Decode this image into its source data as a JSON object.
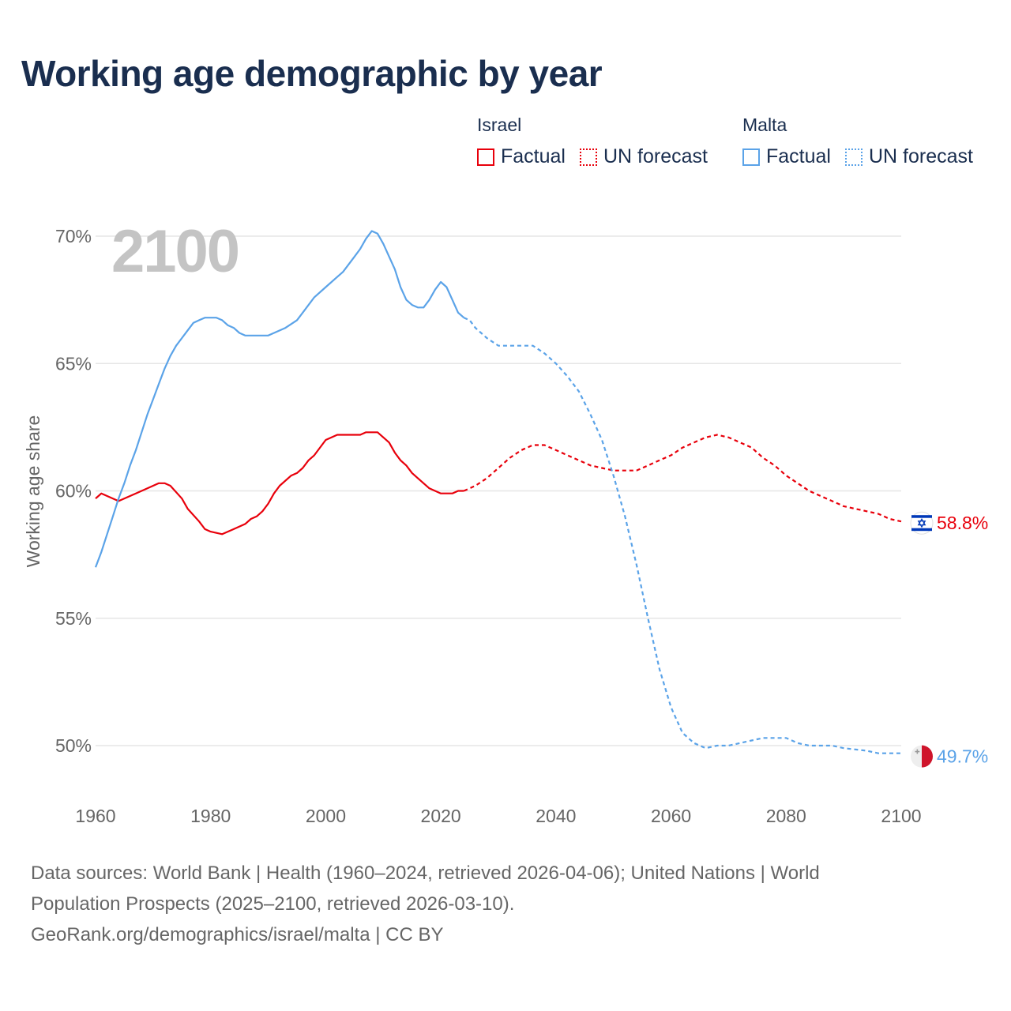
{
  "title": "Working age demographic by year",
  "legend": {
    "groups": [
      {
        "country": "Israel",
        "factual": "Factual",
        "forecast": "UN forecast",
        "color": "#e8000b"
      },
      {
        "country": "Malta",
        "factual": "Factual",
        "forecast": "UN forecast",
        "color": "#5ba3e8"
      }
    ]
  },
  "year_watermark": "2100",
  "footer": {
    "line1": "Data sources: World Bank | Health (1960–2024, retrieved 2026-04-06); United Nations | World",
    "line2": "Population Prospects (2025–2100, retrieved 2026-03-10).",
    "line3": "GeoRank.org/demographics/israel/malta | CC BY"
  },
  "colors": {
    "israel": "#e8000b",
    "malta": "#5ba3e8",
    "grid": "#e6e6e6",
    "axis_text": "#666666"
  },
  "chart_data": {
    "type": "line",
    "title": "Working age demographic by year",
    "ylabel": "Working age share",
    "xlabel": "",
    "xlim": [
      1960,
      2100
    ],
    "ylim": [
      48,
      71
    ],
    "x_ticks": [
      1960,
      1980,
      2000,
      2020,
      2040,
      2060,
      2080,
      2100
    ],
    "x_tick_labels": [
      "1960",
      "1980",
      "2000",
      "2020",
      "2040",
      "2060",
      "2080",
      "2100"
    ],
    "y_ticks": [
      50,
      55,
      60,
      65,
      70
    ],
    "y_tick_labels": [
      "50%",
      "55%",
      "60%",
      "65%",
      "70%"
    ],
    "series": [
      {
        "name": "Israel",
        "color": "#e8000b",
        "end_label": "58.8%",
        "flag": "israel-flag",
        "factual": [
          [
            1960,
            59.7
          ],
          [
            1961,
            59.9
          ],
          [
            1964,
            59.6
          ],
          [
            1967,
            59.9
          ],
          [
            1969,
            60.1
          ],
          [
            1971,
            60.3
          ],
          [
            1972,
            60.3
          ],
          [
            1973,
            60.2
          ],
          [
            1975,
            59.7
          ],
          [
            1976,
            59.3
          ],
          [
            1978,
            58.8
          ],
          [
            1979,
            58.5
          ],
          [
            1980,
            58.4
          ],
          [
            1982,
            58.3
          ],
          [
            1984,
            58.5
          ],
          [
            1986,
            58.7
          ],
          [
            1987,
            58.9
          ],
          [
            1988,
            59.0
          ],
          [
            1989,
            59.2
          ],
          [
            1990,
            59.5
          ],
          [
            1991,
            59.9
          ],
          [
            1992,
            60.2
          ],
          [
            1994,
            60.6
          ],
          [
            1995,
            60.7
          ],
          [
            1996,
            60.9
          ],
          [
            1997,
            61.2
          ],
          [
            1998,
            61.4
          ],
          [
            2000,
            62.0
          ],
          [
            2002,
            62.2
          ],
          [
            2006,
            62.2
          ],
          [
            2007,
            62.3
          ],
          [
            2009,
            62.3
          ],
          [
            2011,
            61.9
          ],
          [
            2012,
            61.5
          ],
          [
            2013,
            61.2
          ],
          [
            2014,
            61.0
          ],
          [
            2015,
            60.7
          ],
          [
            2016,
            60.5
          ],
          [
            2018,
            60.1
          ],
          [
            2020,
            59.9
          ],
          [
            2022,
            59.9
          ],
          [
            2023,
            60.0
          ],
          [
            2024,
            60.0
          ]
        ],
        "forecast": [
          [
            2024,
            60.0
          ],
          [
            2026,
            60.2
          ],
          [
            2028,
            60.5
          ],
          [
            2030,
            60.9
          ],
          [
            2032,
            61.3
          ],
          [
            2034,
            61.6
          ],
          [
            2036,
            61.8
          ],
          [
            2038,
            61.8
          ],
          [
            2040,
            61.6
          ],
          [
            2042,
            61.4
          ],
          [
            2044,
            61.2
          ],
          [
            2046,
            61.0
          ],
          [
            2048,
            60.9
          ],
          [
            2050,
            60.8
          ],
          [
            2052,
            60.8
          ],
          [
            2054,
            60.8
          ],
          [
            2056,
            61.0
          ],
          [
            2058,
            61.2
          ],
          [
            2060,
            61.4
          ],
          [
            2062,
            61.7
          ],
          [
            2064,
            61.9
          ],
          [
            2066,
            62.1
          ],
          [
            2068,
            62.2
          ],
          [
            2070,
            62.1
          ],
          [
            2072,
            61.9
          ],
          [
            2074,
            61.7
          ],
          [
            2076,
            61.3
          ],
          [
            2078,
            61.0
          ],
          [
            2080,
            60.6
          ],
          [
            2082,
            60.3
          ],
          [
            2084,
            60.0
          ],
          [
            2086,
            59.8
          ],
          [
            2088,
            59.6
          ],
          [
            2090,
            59.4
          ],
          [
            2092,
            59.3
          ],
          [
            2094,
            59.2
          ],
          [
            2096,
            59.1
          ],
          [
            2098,
            58.9
          ],
          [
            2100,
            58.8
          ]
        ]
      },
      {
        "name": "Malta",
        "color": "#5ba3e8",
        "end_label": "49.7%",
        "flag": "malta-flag",
        "factual": [
          [
            1960,
            57.0
          ],
          [
            1961,
            57.6
          ],
          [
            1962,
            58.3
          ],
          [
            1963,
            59.0
          ],
          [
            1964,
            59.7
          ],
          [
            1965,
            60.3
          ],
          [
            1966,
            61.0
          ],
          [
            1967,
            61.6
          ],
          [
            1968,
            62.3
          ],
          [
            1969,
            63.0
          ],
          [
            1970,
            63.6
          ],
          [
            1971,
            64.2
          ],
          [
            1972,
            64.8
          ],
          [
            1973,
            65.3
          ],
          [
            1974,
            65.7
          ],
          [
            1975,
            66.0
          ],
          [
            1976,
            66.3
          ],
          [
            1977,
            66.6
          ],
          [
            1978,
            66.7
          ],
          [
            1979,
            66.8
          ],
          [
            1981,
            66.8
          ],
          [
            1982,
            66.7
          ],
          [
            1983,
            66.5
          ],
          [
            1984,
            66.4
          ],
          [
            1985,
            66.2
          ],
          [
            1986,
            66.1
          ],
          [
            1990,
            66.1
          ],
          [
            1993,
            66.4
          ],
          [
            1995,
            66.7
          ],
          [
            1996,
            67.0
          ],
          [
            1998,
            67.6
          ],
          [
            2000,
            68.0
          ],
          [
            2002,
            68.4
          ],
          [
            2003,
            68.6
          ],
          [
            2005,
            69.2
          ],
          [
            2006,
            69.5
          ],
          [
            2007,
            69.9
          ],
          [
            2008,
            70.2
          ],
          [
            2009,
            70.1
          ],
          [
            2010,
            69.7
          ],
          [
            2011,
            69.2
          ],
          [
            2012,
            68.7
          ],
          [
            2013,
            68.0
          ],
          [
            2014,
            67.5
          ],
          [
            2015,
            67.3
          ],
          [
            2016,
            67.2
          ],
          [
            2017,
            67.2
          ],
          [
            2018,
            67.5
          ],
          [
            2019,
            67.9
          ],
          [
            2020,
            68.2
          ],
          [
            2021,
            68.0
          ],
          [
            2022,
            67.5
          ],
          [
            2023,
            67.0
          ],
          [
            2024,
            66.8
          ]
        ],
        "forecast": [
          [
            2024,
            66.8
          ],
          [
            2025,
            66.7
          ],
          [
            2026,
            66.4
          ],
          [
            2028,
            66.0
          ],
          [
            2030,
            65.7
          ],
          [
            2032,
            65.7
          ],
          [
            2034,
            65.7
          ],
          [
            2036,
            65.7
          ],
          [
            2038,
            65.4
          ],
          [
            2040,
            65.0
          ],
          [
            2042,
            64.5
          ],
          [
            2044,
            63.9
          ],
          [
            2046,
            63.0
          ],
          [
            2048,
            62.0
          ],
          [
            2050,
            60.6
          ],
          [
            2052,
            59.0
          ],
          [
            2054,
            57.1
          ],
          [
            2056,
            55.0
          ],
          [
            2058,
            53.0
          ],
          [
            2060,
            51.5
          ],
          [
            2062,
            50.5
          ],
          [
            2064,
            50.1
          ],
          [
            2066,
            49.9
          ],
          [
            2068,
            50.0
          ],
          [
            2070,
            50.0
          ],
          [
            2072,
            50.1
          ],
          [
            2074,
            50.2
          ],
          [
            2076,
            50.3
          ],
          [
            2080,
            50.3
          ],
          [
            2082,
            50.1
          ],
          [
            2084,
            50.0
          ],
          [
            2086,
            50.0
          ],
          [
            2088,
            50.0
          ],
          [
            2090,
            49.9
          ],
          [
            2094,
            49.8
          ],
          [
            2096,
            49.7
          ],
          [
            2100,
            49.7
          ]
        ]
      }
    ]
  }
}
